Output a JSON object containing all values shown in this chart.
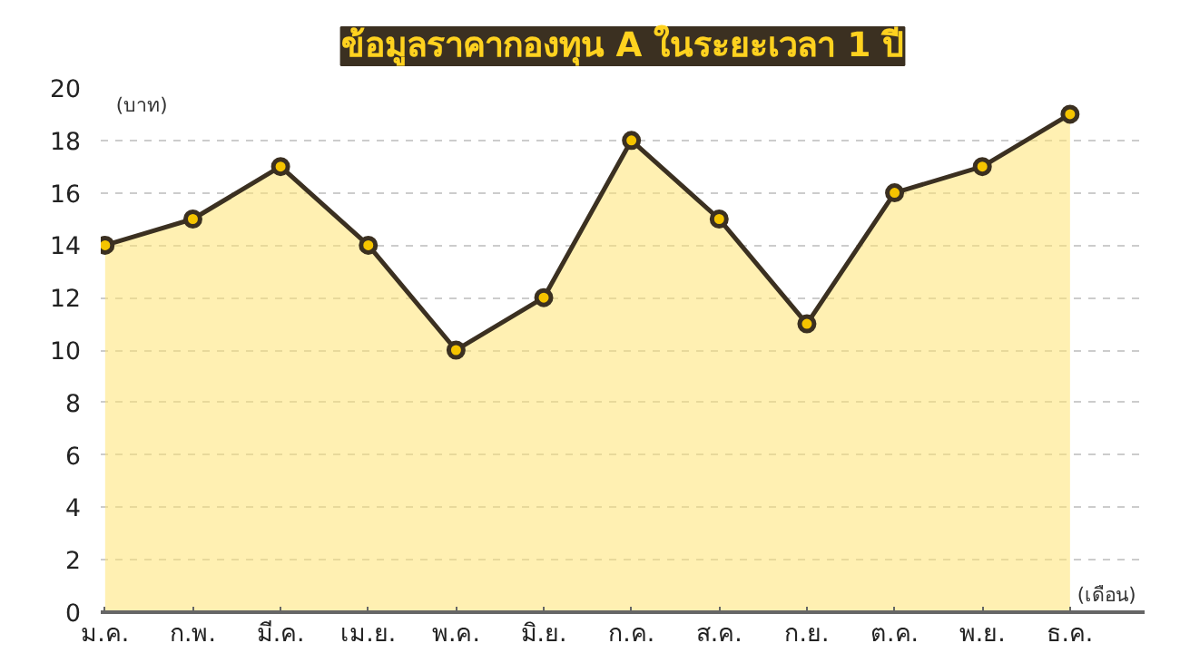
{
  "chart_data": {
    "type": "area",
    "title": "ข้อมูลราคากองทุน A ในระยะเวลา 1 ปี",
    "ylabel": "(บาท)",
    "xlabel": "(เดือน)",
    "categories": [
      "ม.ค.",
      "ก.พ.",
      "มี.ค.",
      "เม.ย.",
      "พ.ค.",
      "มิ.ย.",
      "ก.ค.",
      "ส.ค.",
      "ก.ย.",
      "ต.ค.",
      "พ.ย.",
      "ธ.ค."
    ],
    "series": [
      {
        "color": "#3b3021",
        "values": [
          14,
          15,
          17,
          14,
          10,
          12,
          18,
          15,
          11,
          16,
          17,
          19
        ]
      }
    ],
    "ylim": [
      0,
      20
    ],
    "yticks": [
      0,
      2,
      4,
      6,
      8,
      10,
      12,
      14,
      16,
      18,
      20
    ],
    "grid": "y",
    "marker": "circle",
    "line_style": "solid"
  }
}
